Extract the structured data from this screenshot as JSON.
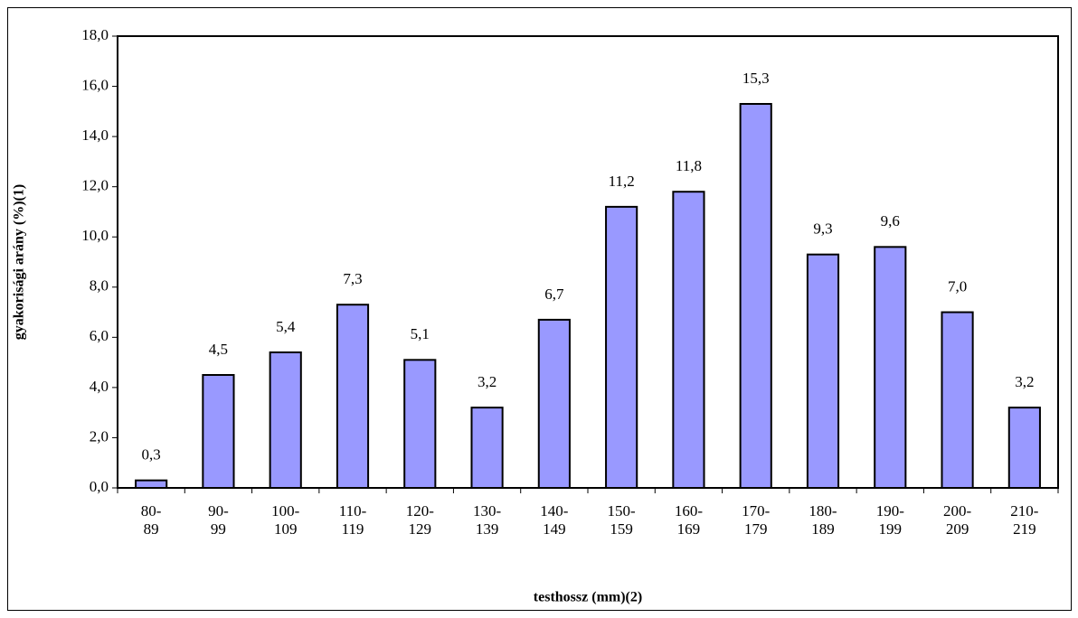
{
  "chart_data": {
    "type": "bar",
    "y_label": "gyakorisági arány (%)(1)",
    "x_label": "testhossz (mm)(2)",
    "categories": [
      "80-\n89",
      "90-\n99",
      "100-\n109",
      "110-\n119",
      "120-\n129",
      "130-\n139",
      "140-\n149",
      "150-\n159",
      "160-\n169",
      "170-\n179",
      "180-\n189",
      "190-\n199",
      "200-\n209",
      "210-\n219"
    ],
    "values": [
      0.3,
      4.5,
      5.4,
      7.3,
      5.1,
      3.2,
      6.7,
      11.2,
      11.8,
      15.3,
      9.3,
      9.6,
      7.0,
      3.2
    ],
    "value_labels": [
      "0,3",
      "4,5",
      "5,4",
      "7,3",
      "5,1",
      "3,2",
      "6,7",
      "11,2",
      "11,8",
      "15,3",
      "9,3",
      "9,6",
      "7,0",
      "3,2"
    ],
    "color": "#9999ff",
    "ylim": [
      0,
      18
    ],
    "yticks": [
      {
        "value": 0,
        "label": "0,0"
      },
      {
        "value": 2,
        "label": "2,0"
      },
      {
        "value": 4,
        "label": "4,0"
      },
      {
        "value": 6,
        "label": "6,0"
      },
      {
        "value": 8,
        "label": "8,0"
      },
      {
        "value": 10,
        "label": "10,0"
      },
      {
        "value": 12,
        "label": "12,0"
      },
      {
        "value": 14,
        "label": "14,0"
      },
      {
        "value": 16,
        "label": "16,0"
      },
      {
        "value": 18,
        "label": "18,0"
      }
    ],
    "grid": false
  }
}
